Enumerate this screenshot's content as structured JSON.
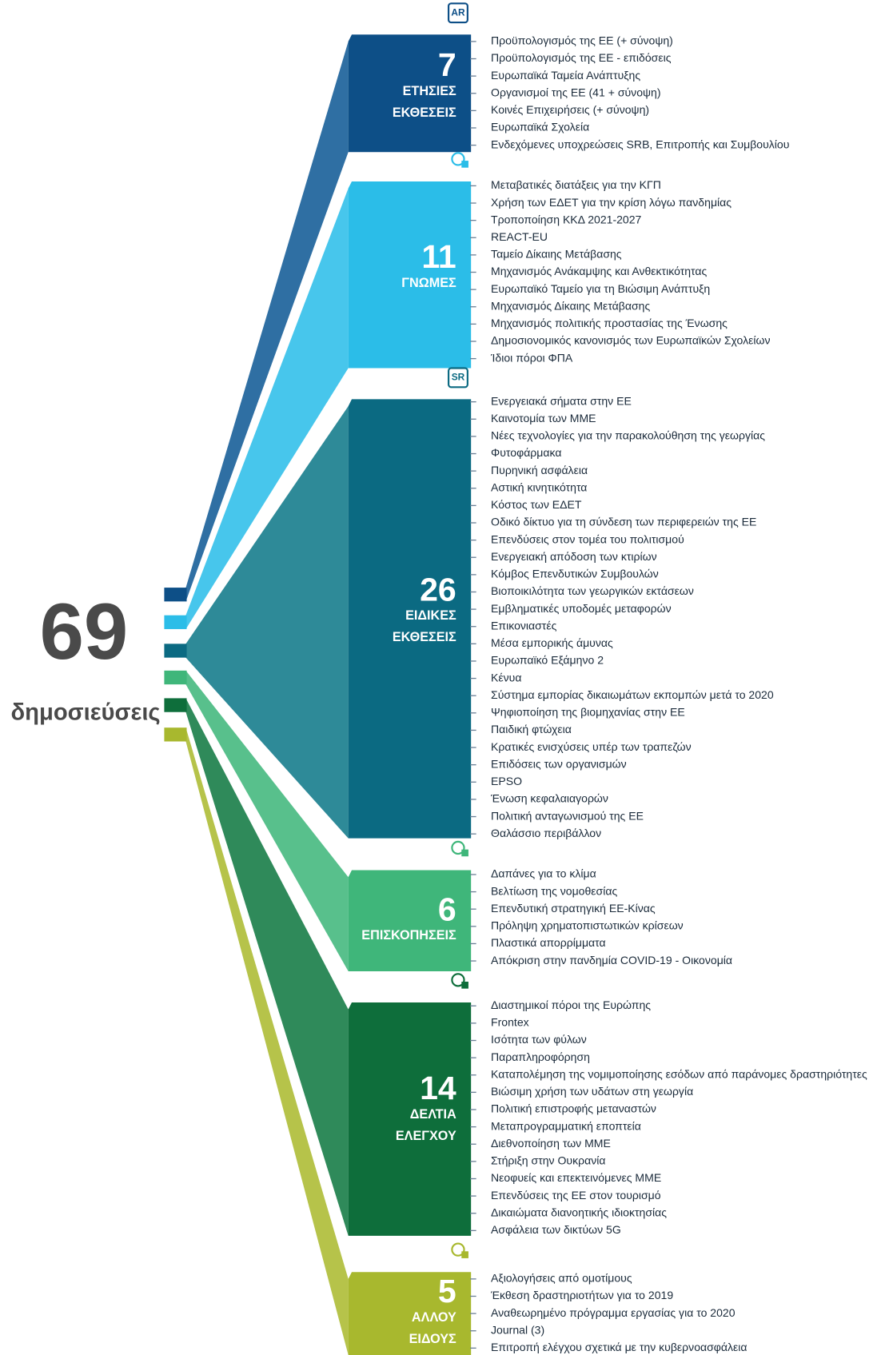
{
  "total": {
    "number": "69",
    "label": "δημοσιεύσεις"
  },
  "groups": [
    {
      "icon": "AR",
      "number": "7",
      "label": [
        "ΕΤΗΣΙΕΣ",
        "ΕΚΘΕΣΕΙΣ"
      ],
      "items": [
        "Προϋπολογισμός της ΕΕ (+ σύνοψη)",
        "Προϋπολογισμός της ΕΕ - επιδόσεις",
        "Ευρωπαϊκά Ταμεία Ανάπτυξης",
        "Οργανισμοί της ΕΕ (41 + σύνοψη)",
        "Κοινές Επιχειρήσεις (+ σύνοψη)",
        "Ευρωπαϊκά Σχολεία",
        "Ενδεχόμενες υποχρεώσεις SRB, Επιτροπής και Συμβουλίου"
      ]
    },
    {
      "number": "11",
      "label": [
        "ΓΝΩΜΕΣ"
      ],
      "items": [
        "Μεταβατικές διατάξεις για την ΚΓΠ",
        "Χρήση των ΕΔΕΤ για την κρίση λόγω πανδημίας",
        "Τροποποίηση ΚΚΔ 2021-2027",
        "REACT-EU",
        "Ταμείο Δίκαιης Μετάβασης",
        "Μηχανισμός Ανάκαμψης και Ανθεκτικότητας",
        "Ευρωπαϊκό Ταμείο για τη Βιώσιμη Ανάπτυξη",
        "Μηχανισμός Δίκαιης Μετάβασης",
        "Μηχανισμός πολιτικής προστασίας της Ένωσης",
        "Δημοσιονομικός κανονισμός των Ευρωπαϊκών Σχολείων",
        "Ίδιοι πόροι ΦΠΑ"
      ]
    },
    {
      "icon": "SR",
      "number": "26",
      "label": [
        "ΕΙΔΙΚΕΣ",
        "ΕΚΘΕΣΕΙΣ"
      ],
      "items": [
        "Ενεργειακά σήματα στην ΕΕ",
        "Καινοτομία των ΜΜΕ",
        "Νέες τεχνολογίες για την παρακολούθηση της γεωργίας",
        "Φυτοφάρμακα",
        "Πυρηνική ασφάλεια",
        "Αστική κινητικότητα",
        "Κόστος των ΕΔΕΤ",
        "Οδικό δίκτυο για τη σύνδεση των περιφερειών της ΕΕ",
        "Επενδύσεις στον τομέα του πολιτισμού",
        "Ενεργειακή απόδοση των κτιρίων",
        "Κόμβος Επενδυτικών Συμβουλών",
        "Βιοποικιλότητα των γεωργικών εκτάσεων",
        "Εμβληματικές υποδομές μεταφορών",
        "Επικονιαστές",
        "Μέσα εμπορικής άμυνας",
        "Ευρωπαϊκό Εξάμηνο 2",
        "Κένυα",
        "Σύστημα εμπορίας δικαιωμάτων εκπομπών μετά το 2020",
        "Ψηφιοποίηση της βιομηχανίας στην ΕΕ",
        "Παιδική φτώχεια",
        "Κρατικές ενισχύσεις υπέρ των τραπεζών",
        "Επιδόσεις των οργανισμών",
        "EPSO",
        "Ένωση κεφαλαιαγορών",
        "Πολιτική ανταγωνισμού της ΕΕ",
        "Θαλάσσιο περιβάλλον"
      ]
    },
    {
      "number": "6",
      "label": [
        "ΕΠΙΣΚΟΠΗΣΕΙΣ"
      ],
      "items": [
        "Δαπάνες για το κλίμα",
        "Βελτίωση της νομοθεσίας",
        "Επενδυτική στρατηγική ΕΕ-Κίνας",
        "Πρόληψη χρηματοπιστωτικών κρίσεων",
        "Πλαστικά απορρίμματα",
        "Απόκριση στην πανδημία COVID-19 - Οικονομία"
      ]
    },
    {
      "number": "14",
      "label": [
        "ΔΕΛΤΙΑ",
        "ΕΛΕΓΧΟΥ"
      ],
      "items": [
        "Διαστημικοί πόροι της Ευρώπης",
        "Frontex",
        "Ισότητα των φύλων",
        "Παραπληροφόρηση",
        "Καταπολέμηση της νομιμοποίησης εσόδων από παράνομες δραστηριότητες",
        "Βιώσιμη χρήση των υδάτων στη γεωργία",
        "Πολιτική επιστροφής μεταναστών",
        "Μεταπρογραμματική εποπτεία",
        "Διεθνοποίηση των ΜΜΕ",
        "Στήριξη στην Ουκρανία",
        "Νεοφυείς και επεκτεινόμενες ΜΜΕ",
        "Επενδύσεις της ΕΕ στον τουρισμό",
        "Δικαιώματα διανοητικής ιδιοκτησίας",
        "Ασφάλεια των δικτύων 5G"
      ]
    },
    {
      "number": "5",
      "label": [
        "ΑΛΛΟΥ",
        "ΕΙΔΟΥΣ"
      ],
      "items": [
        "Αξιολογήσεις από ομοτίμους",
        "Έκθεση δραστηριοτήτων για το 2019",
        "Αναθεωρημένο πρόγραμμα εργασίας για το 2020",
        "Journal (3)",
        "Επιτροπή ελέγχου σχετικά με την κυβερνοασφάλεια"
      ]
    }
  ]
}
